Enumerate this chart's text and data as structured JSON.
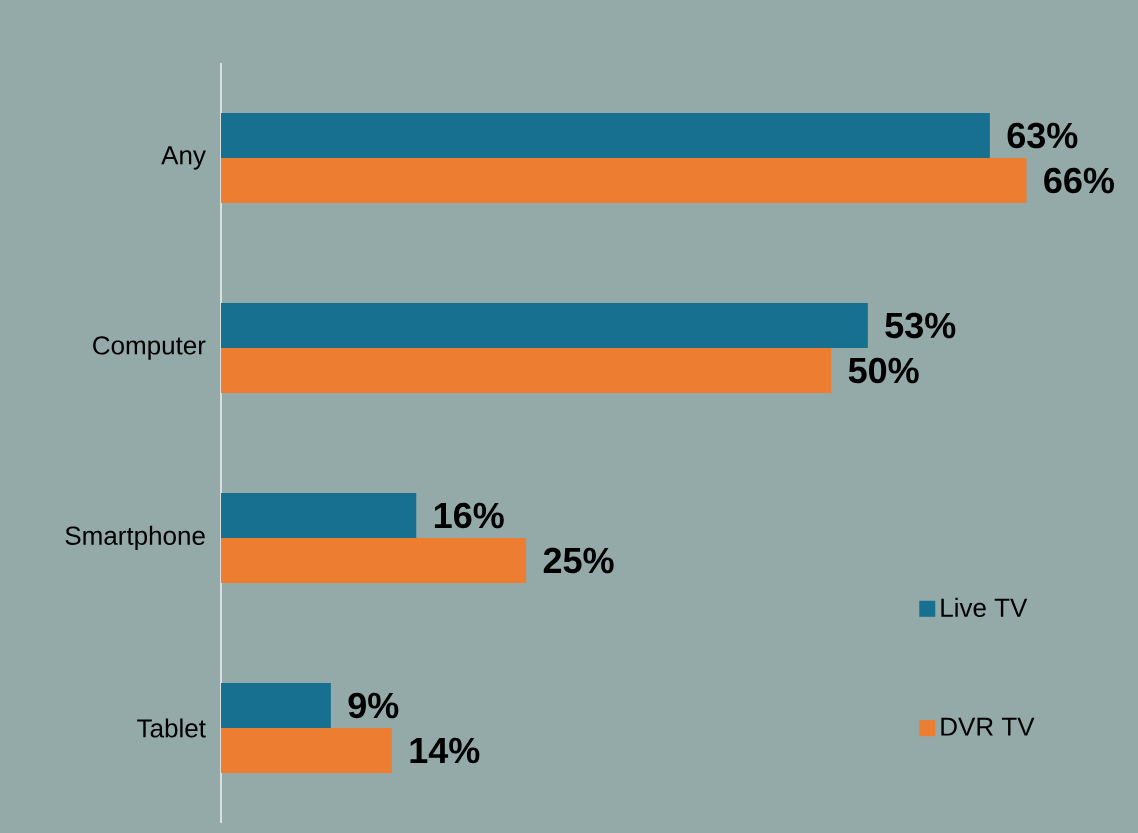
{
  "chart_data": {
    "type": "bar",
    "orientation": "horizontal",
    "categories": [
      "Any",
      "Computer",
      "Smartphone",
      "Tablet"
    ],
    "series": [
      {
        "name": "Live TV",
        "color": "#17708f",
        "values": [
          63,
          53,
          16,
          9
        ],
        "value_labels": [
          "63%",
          "53%",
          "16%",
          "9%"
        ]
      },
      {
        "name": "DVR TV",
        "color": "#ed7d31",
        "values": [
          66,
          50,
          25,
          14
        ],
        "value_labels": [
          "66%",
          "50%",
          "25%",
          "14%"
        ]
      }
    ],
    "legend": "bottom right",
    "grid": false
  }
}
